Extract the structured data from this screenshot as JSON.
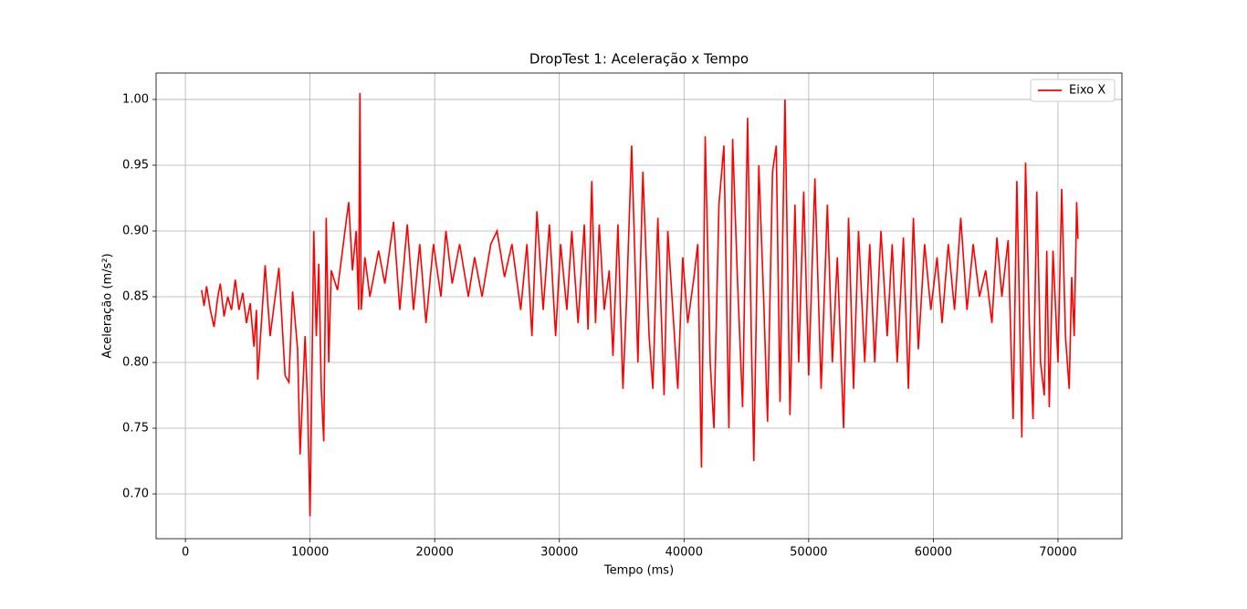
{
  "chart_data": {
    "type": "line",
    "title": "DropTest 1: Aceleração x Tempo",
    "x_label": "Tempo (ms)",
    "y_label": "Aceleração (m/s²)",
    "xlim": [
      -2350,
      75130
    ],
    "ylim": [
      0.666,
      1.0201
    ],
    "xticks": [
      0,
      10000,
      20000,
      30000,
      40000,
      50000,
      60000,
      70000
    ],
    "yticks": [
      {
        "value": 0.7,
        "label": "0.70"
      },
      {
        "value": 0.75,
        "label": "0.75"
      },
      {
        "value": 0.8,
        "label": "0.80"
      },
      {
        "value": 0.85,
        "label": "0.85"
      },
      {
        "value": 0.9,
        "label": "0.90"
      },
      {
        "value": 0.95,
        "label": "0.95"
      },
      {
        "value": 1,
        "label": "1.00"
      }
    ],
    "grid": true,
    "legend": "upper right",
    "x": [
      1300,
      1500,
      1700,
      2000,
      2300,
      2600,
      2800,
      3100,
      3400,
      3700,
      4000,
      4300,
      4600,
      4900,
      5200,
      5500,
      5700,
      5800,
      6400,
      6800,
      7500,
      8000,
      8300,
      8600,
      9000,
      9200,
      9600,
      9800,
      10000,
      10300,
      10500,
      10700,
      10900,
      11100,
      11300,
      11500,
      11700,
      12200,
      12800,
      13100,
      13400,
      13700,
      13900,
      14000,
      14100,
      14400,
      14800,
      15500,
      16000,
      16700,
      17200,
      17800,
      18300,
      18800,
      19300,
      19900,
      20500,
      20900,
      21400,
      22000,
      22700,
      23200,
      23800,
      24500,
      25000,
      25600,
      26200,
      26900,
      27400,
      27800,
      28200,
      28700,
      29200,
      29700,
      30100,
      30600,
      31000,
      31500,
      32000,
      32300,
      32600,
      32900,
      33200,
      33600,
      34000,
      34300,
      34700,
      35100,
      35400,
      35800,
      36300,
      36700,
      37200,
      37500,
      37900,
      38400,
      38700,
      39100,
      39500,
      39900,
      40300,
      40800,
      41100,
      41400,
      41700,
      42100,
      42400,
      42800,
      43200,
      43600,
      43900,
      44300,
      44700,
      45100,
      45400,
      45600,
      46000,
      46400,
      46700,
      47100,
      47400,
      47700,
      48100,
      48500,
      48900,
      49200,
      49600,
      50000,
      50500,
      51000,
      51500,
      51900,
      52300,
      52800,
      53200,
      53600,
      54000,
      54500,
      54900,
      55300,
      55800,
      56300,
      56700,
      57100,
      57600,
      58000,
      58400,
      58800,
      59300,
      59800,
      60300,
      60700,
      61200,
      61700,
      62200,
      62700,
      63200,
      63700,
      64200,
      64700,
      65100,
      65500,
      66000,
      66400,
      66700,
      67000,
      67100,
      67400,
      67700,
      68000,
      68300,
      68600,
      68900,
      69100,
      69300,
      69600,
      70000,
      70300,
      70600,
      70900,
      71100,
      71300,
      71500,
      71600
    ],
    "series": [
      {
        "name": "Eixo X",
        "color": "#ff0000",
        "values": [
          0.855,
          0.843,
          0.858,
          0.84,
          0.827,
          0.85,
          0.86,
          0.835,
          0.85,
          0.84,
          0.863,
          0.84,
          0.853,
          0.83,
          0.845,
          0.812,
          0.84,
          0.787,
          0.874,
          0.82,
          0.872,
          0.79,
          0.785,
          0.854,
          0.81,
          0.73,
          0.82,
          0.77,
          0.683,
          0.9,
          0.82,
          0.875,
          0.78,
          0.74,
          0.91,
          0.8,
          0.87,
          0.855,
          0.9,
          0.922,
          0.87,
          0.9,
          0.84,
          1.005,
          0.84,
          0.88,
          0.85,
          0.885,
          0.86,
          0.907,
          0.84,
          0.905,
          0.84,
          0.89,
          0.83,
          0.89,
          0.85,
          0.9,
          0.86,
          0.89,
          0.85,
          0.88,
          0.85,
          0.89,
          0.9,
          0.865,
          0.89,
          0.84,
          0.89,
          0.82,
          0.915,
          0.84,
          0.905,
          0.82,
          0.89,
          0.84,
          0.9,
          0.83,
          0.905,
          0.825,
          0.938,
          0.83,
          0.905,
          0.84,
          0.87,
          0.805,
          0.905,
          0.78,
          0.85,
          0.965,
          0.8,
          0.945,
          0.82,
          0.78,
          0.91,
          0.775,
          0.9,
          0.84,
          0.78,
          0.88,
          0.83,
          0.865,
          0.89,
          0.72,
          0.972,
          0.8,
          0.75,
          0.92,
          0.965,
          0.75,
          0.97,
          0.86,
          0.766,
          0.986,
          0.82,
          0.725,
          0.95,
          0.845,
          0.755,
          0.945,
          0.965,
          0.77,
          1.0,
          0.76,
          0.92,
          0.8,
          0.93,
          0.79,
          0.94,
          0.78,
          0.92,
          0.8,
          0.88,
          0.75,
          0.91,
          0.78,
          0.9,
          0.8,
          0.89,
          0.8,
          0.9,
          0.82,
          0.89,
          0.8,
          0.895,
          0.78,
          0.91,
          0.81,
          0.89,
          0.84,
          0.88,
          0.83,
          0.89,
          0.84,
          0.91,
          0.84,
          0.89,
          0.85,
          0.87,
          0.83,
          0.895,
          0.85,
          0.893,
          0.757,
          0.938,
          0.8,
          0.743,
          0.952,
          0.83,
          0.757,
          0.93,
          0.8,
          0.775,
          0.885,
          0.766,
          0.885,
          0.8,
          0.932,
          0.82,
          0.78,
          0.865,
          0.82,
          0.922,
          0.894
        ]
      }
    ]
  }
}
